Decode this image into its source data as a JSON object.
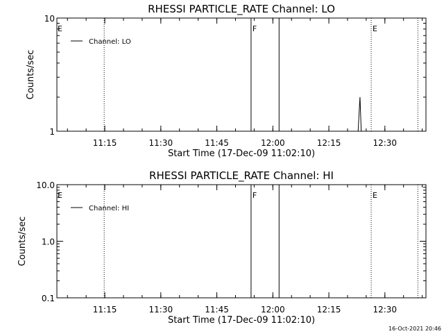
{
  "chart_data": [
    {
      "type": "line",
      "title": "RHESSI PARTICLE_RATE Channel: LO",
      "xlabel": "Start Time (17-Dec-09 11:02:10)",
      "ylabel": "Counts/sec",
      "y_scale": "log",
      "ylim": [
        1,
        10
      ],
      "y_tick_labels": [
        "1",
        "10"
      ],
      "x_tick_labels": [
        "11:15",
        "11:30",
        "11:45",
        "12:00",
        "12:15",
        "12:30"
      ],
      "xlim": [
        "11:02:10",
        "12:41:00"
      ],
      "legend": {
        "placement": "top-left",
        "entries": [
          "Channel: LO"
        ]
      },
      "series": [
        {
          "name": "Channel: LO",
          "x": [
            "12:22:50",
            "12:23:10",
            "12:23:20",
            "12:23:40"
          ],
          "y": [
            1,
            1.6,
            2.0,
            1
          ]
        }
      ],
      "vertical_markers": [
        {
          "time": "11:14:50",
          "style": "dotted",
          "label": ""
        },
        {
          "time": "11:54:10",
          "style": "solid",
          "label": "F"
        },
        {
          "time": "12:01:40",
          "style": "solid",
          "label": ""
        },
        {
          "time": "12:26:20",
          "style": "dotted",
          "label": "E"
        },
        {
          "time": "12:38:50",
          "style": "dotted",
          "label": ""
        }
      ],
      "left_edge_label": "E"
    },
    {
      "type": "line",
      "title": "RHESSI PARTICLE_RATE Channel: HI",
      "xlabel": "Start Time (17-Dec-09 11:02:10)",
      "ylabel": "Counts/sec",
      "y_scale": "log",
      "ylim": [
        0.1,
        10
      ],
      "y_tick_labels": [
        "0.1",
        "1.0",
        "10.0"
      ],
      "x_tick_labels": [
        "11:15",
        "11:30",
        "11:45",
        "12:00",
        "12:15",
        "12:30"
      ],
      "xlim": [
        "11:02:10",
        "12:41:00"
      ],
      "legend": {
        "placement": "top-left",
        "entries": [
          "Channel: HI"
        ]
      },
      "series": [
        {
          "name": "Channel: HI",
          "x": [],
          "y": []
        }
      ],
      "vertical_markers": [
        {
          "time": "11:14:50",
          "style": "dotted",
          "label": ""
        },
        {
          "time": "11:54:10",
          "style": "solid",
          "label": "F"
        },
        {
          "time": "12:01:40",
          "style": "solid",
          "label": ""
        },
        {
          "time": "12:26:20",
          "style": "dotted",
          "label": "E"
        },
        {
          "time": "12:38:50",
          "style": "dotted",
          "label": ""
        }
      ],
      "left_edge_label": "E"
    }
  ],
  "footer": {
    "timestamp": "16-Oct-2021 20:46"
  }
}
